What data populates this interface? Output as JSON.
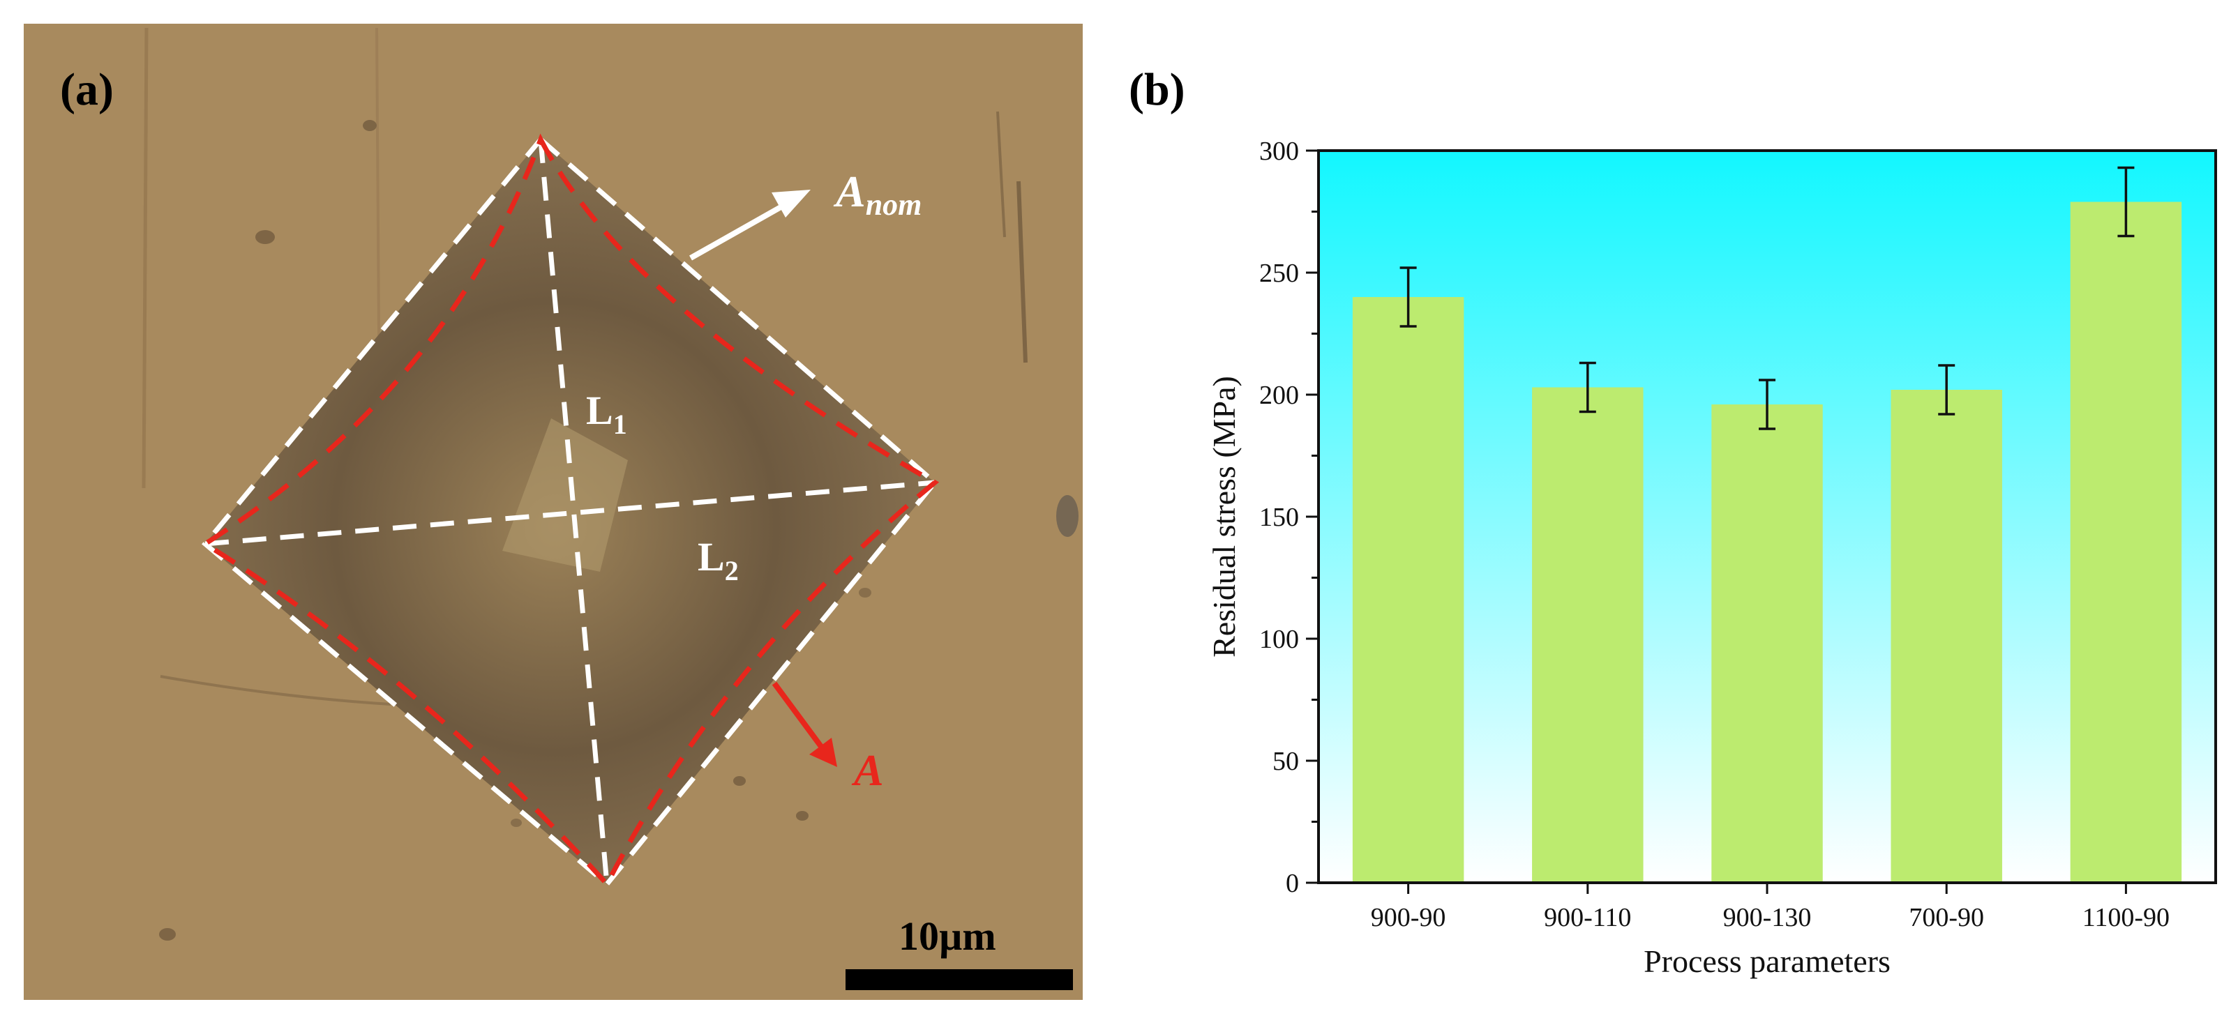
{
  "panel_a": {
    "label": "(a)",
    "annotations": {
      "diag1": "L",
      "diag1_sub": "1",
      "diag2": "L",
      "diag2_sub": "2",
      "nominal_area": "A",
      "nominal_area_sub": "nom",
      "actual_area": "A"
    },
    "scale_bar_label": "10µm",
    "colors": {
      "background": "#a88a5e",
      "nominal_outline": "#ffffff",
      "actual_outline": "#e8261c"
    }
  },
  "panel_b": {
    "label": "(b)"
  },
  "chart_data": {
    "type": "bar",
    "categories": [
      "900-90",
      "900-110",
      "900-130",
      "700-90",
      "1100-90"
    ],
    "values": [
      240,
      203,
      196,
      202,
      279
    ],
    "errors": [
      12,
      10,
      10,
      10,
      14
    ],
    "xlabel": "Process parameters",
    "ylabel": "Residual stress (MPa)",
    "ylim": [
      0,
      300
    ],
    "yticks": [
      0,
      50,
      100,
      150,
      200,
      250,
      300
    ],
    "grid": false,
    "legend": "none",
    "colors": {
      "bar": "#bceb6f",
      "background_top": "#12f7ff",
      "background_bottom": "#ffffff"
    }
  }
}
